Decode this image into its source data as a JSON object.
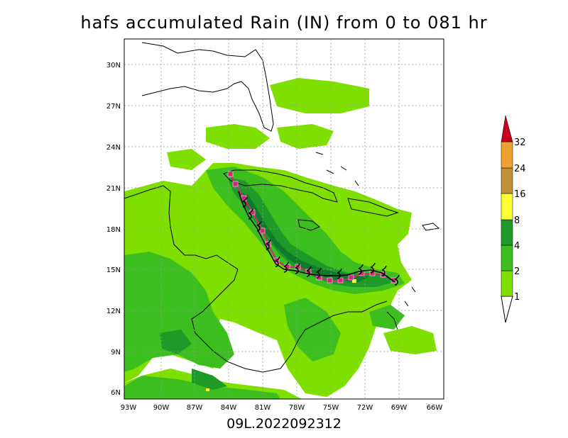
{
  "title": "hafs accumulated Rain (IN) from 0 to 081 hr",
  "subtitle": "09L.2022092312",
  "axes": {
    "x_ticks": [
      "93W",
      "90W",
      "87W",
      "84W",
      "81W",
      "78W",
      "75W",
      "72W",
      "69W",
      "66W"
    ],
    "y_ticks": [
      "30N",
      "27N",
      "24N",
      "21N",
      "18N",
      "15N",
      "12N",
      "9N",
      "6N"
    ]
  },
  "colorbar": {
    "levels": [
      "1",
      "2",
      "4",
      "8",
      "16",
      "24",
      "32"
    ],
    "colors": [
      "#7fe000",
      "#3cbe1e",
      "#1f9a28",
      "#0e7a2a",
      "#ffff35",
      "#c4913a",
      "#f0a030",
      "#c8001e"
    ]
  },
  "map_colors": {
    "ocean": "#ffffff",
    "coast": "#000000",
    "track_forecast": "#d2287a",
    "track_symbol": "#000000"
  },
  "track_marker": "tropical-cyclone-symbol"
}
